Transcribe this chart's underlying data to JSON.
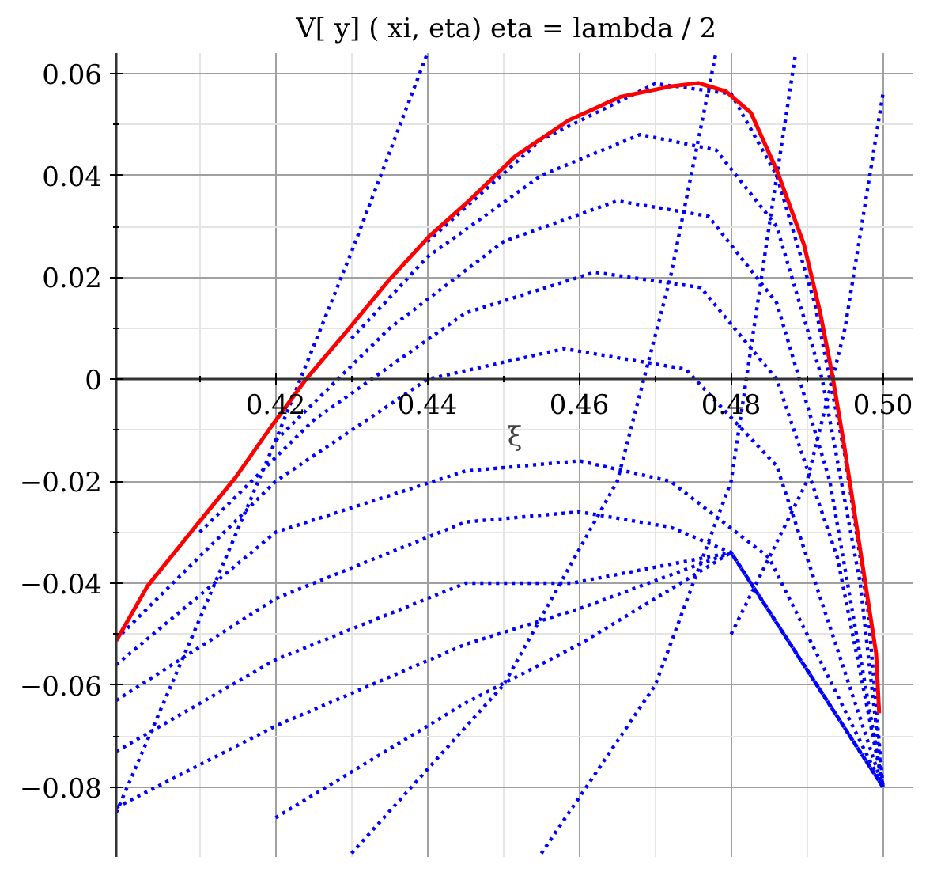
{
  "chart_data": {
    "type": "line",
    "title": "V[ y] ( xi, eta)   eta = lambda / 2",
    "xlabel": "ξ",
    "xlim": [
      0.399,
      0.504
    ],
    "ylim": [
      -0.0937,
      0.064
    ],
    "xticks": [
      0.42,
      0.44,
      0.46,
      0.48,
      {
        "value": 0.5,
        "label": "0.50"
      }
    ],
    "yticks": [
      {
        "value": -0.08,
        "label": "−0.08"
      },
      {
        "value": -0.06,
        "label": "−0.06"
      },
      {
        "value": -0.04,
        "label": "−0.04"
      },
      {
        "value": -0.02,
        "label": "−0.02"
      },
      0,
      0.02,
      0.04,
      0.06
    ],
    "grid": true,
    "marker": "none",
    "series": [
      {
        "color": "#0000ff",
        "line_style": "dotted",
        "x": [
          0.44,
          0.455,
          0.47,
          0.48,
          0.486,
          0.491,
          0.495,
          0.498,
          0.5
        ],
        "values": [
          0.027,
          0.047,
          0.058,
          0.056,
          0.04,
          0.015,
          -0.015,
          -0.045,
          -0.08
        ]
      },
      {
        "color": "#0000ff",
        "line_style": "dotted",
        "x": [
          0.43,
          0.44,
          0.455,
          0.468,
          0.478,
          0.486,
          0.492,
          0.497,
          0.5
        ],
        "values": [
          0.008,
          0.024,
          0.04,
          0.048,
          0.045,
          0.03,
          0.0,
          -0.04,
          -0.08
        ]
      },
      {
        "color": "#0000ff",
        "line_style": "dotted",
        "x": [
          0.42,
          0.435,
          0.45,
          0.465,
          0.477,
          0.486,
          0.493,
          0.5
        ],
        "values": [
          -0.012,
          0.01,
          0.027,
          0.035,
          0.032,
          0.015,
          -0.02,
          -0.08
        ]
      },
      {
        "color": "#0000ff",
        "line_style": "dotted",
        "x": [
          0.41,
          0.425,
          0.445,
          0.462,
          0.476,
          0.486,
          0.494,
          0.5
        ],
        "values": [
          -0.03,
          -0.008,
          0.013,
          0.021,
          0.018,
          0.0,
          -0.035,
          -0.08
        ]
      },
      {
        "color": "#0000ff",
        "line_style": "dotted",
        "x": [
          0.399,
          0.42,
          0.44,
          0.458,
          0.474,
          0.486,
          0.5
        ],
        "values": [
          -0.051,
          -0.02,
          0.0,
          0.006,
          0.002,
          -0.017,
          -0.08
        ]
      },
      {
        "color": "#0000ff",
        "line_style": "dotted",
        "x": [
          0.399,
          0.42,
          0.445,
          0.46,
          0.472,
          0.485,
          0.5
        ],
        "values": [
          -0.056,
          -0.03,
          -0.018,
          -0.016,
          -0.02,
          -0.035,
          -0.08
        ]
      },
      {
        "color": "#0000ff",
        "line_style": "dotted",
        "x": [
          0.399,
          0.42,
          0.445,
          0.46,
          0.472,
          0.48,
          0.5
        ],
        "values": [
          -0.063,
          -0.043,
          -0.028,
          -0.026,
          -0.029,
          -0.034,
          -0.08
        ]
      },
      {
        "color": "#0000ff",
        "line_style": "dotted",
        "x": [
          0.399,
          0.42,
          0.445,
          0.459,
          0.48,
          0.5
        ],
        "values": [
          -0.073,
          -0.055,
          -0.04,
          -0.04,
          -0.034,
          -0.08
        ]
      },
      {
        "color": "#0000ff",
        "line_style": "dotted",
        "x": [
          0.399,
          0.42,
          0.445,
          0.46,
          0.48,
          0.5
        ],
        "values": [
          -0.084,
          -0.068,
          -0.052,
          -0.045,
          -0.034,
          -0.08
        ]
      },
      {
        "color": "#0000ff",
        "line_style": "dotted",
        "x": [
          0.42,
          0.445,
          0.46,
          0.48,
          0.5
        ],
        "values": [
          -0.086,
          -0.0635,
          -0.052,
          -0.034,
          -0.08
        ]
      },
      {
        "color": "#0000ff",
        "line_style": "dotted",
        "x": [
          0.399,
          0.41,
          0.42,
          0.43,
          0.44
        ],
        "values": [
          -0.085,
          -0.047,
          -0.012,
          0.025,
          0.064
        ]
      },
      {
        "color": "#0000ff",
        "line_style": "dotted",
        "x": [
          0.43,
          0.45,
          0.465,
          0.472,
          0.478
        ],
        "values": [
          -0.093,
          -0.06,
          -0.02,
          0.02,
          0.064
        ]
      },
      {
        "color": "#0000ff",
        "line_style": "dotted",
        "x": [
          0.455,
          0.47,
          0.48,
          0.485,
          0.4885
        ],
        "values": [
          -0.093,
          -0.06,
          -0.02,
          0.03,
          0.064
        ]
      },
      {
        "color": "#0000ff",
        "line_style": "dotted",
        "x": [
          0.48,
          0.49,
          0.495,
          0.5
        ],
        "values": [
          -0.05,
          -0.02,
          0.01,
          0.056
        ]
      },
      {
        "color": "#ff0000",
        "line_style": "solid",
        "x": [
          0.399,
          0.4031,
          0.4097,
          0.4147,
          0.4196,
          0.4241,
          0.4293,
          0.4349,
          0.4402,
          0.4456,
          0.4516,
          0.4586,
          0.4654,
          0.4722,
          0.4757,
          0.4793,
          0.4826,
          0.4861,
          0.4896,
          0.4917,
          0.4933,
          0.4949,
          0.497,
          0.4991,
          0.4995
        ],
        "values": [
          -0.0513,
          -0.0406,
          -0.0284,
          -0.0193,
          -0.0089,
          0.0002,
          0.0093,
          0.0194,
          0.028,
          0.0352,
          0.0438,
          0.0508,
          0.0554,
          0.0575,
          0.0581,
          0.0565,
          0.0523,
          0.0407,
          0.0264,
          0.0133,
          0.0011,
          -0.0131,
          -0.0334,
          -0.0538,
          -0.0655
        ]
      }
    ]
  }
}
